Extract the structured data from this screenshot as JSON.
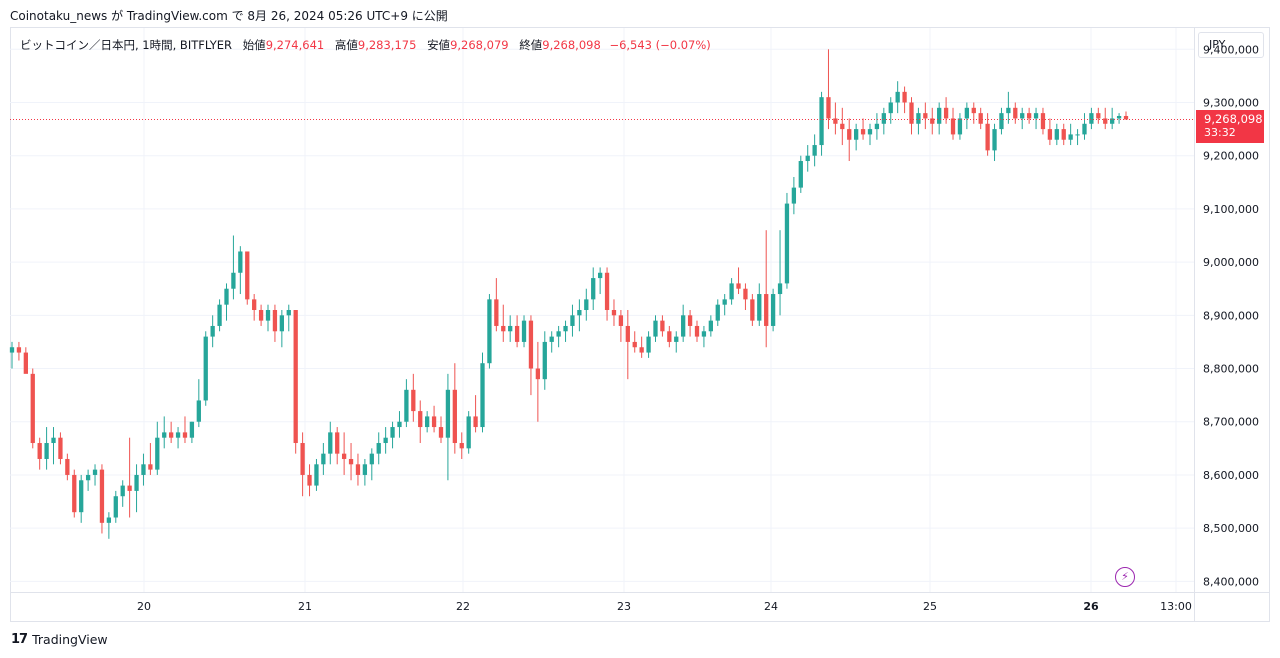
{
  "header": {
    "title": "Coinotaku_news が TradingView.com で 8月 26, 2024 05:26 UTC+9 に公開"
  },
  "legend": {
    "symbol": "ビットコイン／日本円, 1時間, BITFLYER",
    "open_label": "始値",
    "open": "9,274,641",
    "high_label": "高値",
    "high": "9,283,175",
    "low_label": "安値",
    "low": "9,268,079",
    "close_label": "終値",
    "close": "9,268,098",
    "change": "−6,543 (−0.07%)"
  },
  "currency": "JPY",
  "price_tag": {
    "price": "9,268,098",
    "countdown": "33:32"
  },
  "footer": {
    "logo_text": "TradingView",
    "logo_mark": "17"
  },
  "colors": {
    "up": "#26a69a",
    "down": "#ef5350",
    "grid": "#f0f3fa",
    "last_price": "#f23645"
  },
  "chart_data": {
    "type": "candlestick",
    "ylim": [
      8380000,
      9440000
    ],
    "y_ticks": [
      8400000,
      8500000,
      8600000,
      8700000,
      8800000,
      8900000,
      9000000,
      9100000,
      9200000,
      9300000,
      9400000
    ],
    "y_tick_labels": [
      "8,400,000",
      "8,500,000",
      "8,600,000",
      "8,700,000",
      "8,800,000",
      "8,900,000",
      "9,000,000",
      "9,100,000",
      "9,200,000",
      "9,300,000",
      "9,400,000"
    ],
    "x_ticks": [
      {
        "label": "20",
        "bold": false
      },
      {
        "label": "21",
        "bold": false
      },
      {
        "label": "22",
        "bold": false
      },
      {
        "label": "23",
        "bold": false
      },
      {
        "label": "24",
        "bold": false
      },
      {
        "label": "25",
        "bold": false
      },
      {
        "label": "26",
        "bold": true
      },
      {
        "label": "13:00",
        "bold": false
      }
    ],
    "last_price": 9268098,
    "candles_ohlc": [
      [
        8830000,
        8850000,
        8800000,
        8840000
      ],
      [
        8840000,
        8850000,
        8815000,
        8830000
      ],
      [
        8830000,
        8840000,
        8800000,
        8790000
      ],
      [
        8790000,
        8800000,
        8650000,
        8660000
      ],
      [
        8660000,
        8670000,
        8610000,
        8630000
      ],
      [
        8630000,
        8690000,
        8610000,
        8660000
      ],
      [
        8660000,
        8690000,
        8620000,
        8670000
      ],
      [
        8670000,
        8680000,
        8620000,
        8630000
      ],
      [
        8630000,
        8640000,
        8590000,
        8600000
      ],
      [
        8600000,
        8610000,
        8520000,
        8530000
      ],
      [
        8530000,
        8600000,
        8510000,
        8590000
      ],
      [
        8590000,
        8610000,
        8570000,
        8600000
      ],
      [
        8600000,
        8620000,
        8580000,
        8610000
      ],
      [
        8610000,
        8620000,
        8490000,
        8510000
      ],
      [
        8510000,
        8530000,
        8480000,
        8520000
      ],
      [
        8520000,
        8570000,
        8510000,
        8560000
      ],
      [
        8560000,
        8590000,
        8540000,
        8580000
      ],
      [
        8580000,
        8670000,
        8520000,
        8570000
      ],
      [
        8570000,
        8620000,
        8530000,
        8600000
      ],
      [
        8600000,
        8640000,
        8580000,
        8620000
      ],
      [
        8620000,
        8660000,
        8600000,
        8610000
      ],
      [
        8610000,
        8700000,
        8600000,
        8670000
      ],
      [
        8670000,
        8710000,
        8650000,
        8680000
      ],
      [
        8680000,
        8700000,
        8660000,
        8670000
      ],
      [
        8670000,
        8690000,
        8650000,
        8680000
      ],
      [
        8680000,
        8710000,
        8660000,
        8670000
      ],
      [
        8670000,
        8700000,
        8660000,
        8700000
      ],
      [
        8700000,
        8780000,
        8690000,
        8740000
      ],
      [
        8740000,
        8870000,
        8730000,
        8860000
      ],
      [
        8860000,
        8900000,
        8840000,
        8880000
      ],
      [
        8880000,
        8930000,
        8870000,
        8920000
      ],
      [
        8920000,
        8960000,
        8890000,
        8950000
      ],
      [
        8950000,
        9050000,
        8930000,
        8980000
      ],
      [
        8980000,
        9030000,
        8940000,
        9020000
      ],
      [
        9020000,
        9010000,
        8920000,
        8930000
      ],
      [
        8930000,
        8940000,
        8890000,
        8910000
      ],
      [
        8910000,
        8920000,
        8880000,
        8890000
      ],
      [
        8890000,
        8920000,
        8870000,
        8910000
      ],
      [
        8910000,
        8920000,
        8850000,
        8870000
      ],
      [
        8870000,
        8910000,
        8840000,
        8900000
      ],
      [
        8900000,
        8920000,
        8870000,
        8910000
      ],
      [
        8910000,
        8910000,
        8640000,
        8660000
      ],
      [
        8660000,
        8680000,
        8560000,
        8600000
      ],
      [
        8600000,
        8620000,
        8560000,
        8580000
      ],
      [
        8580000,
        8630000,
        8570000,
        8620000
      ],
      [
        8620000,
        8660000,
        8600000,
        8640000
      ],
      [
        8640000,
        8700000,
        8620000,
        8680000
      ],
      [
        8680000,
        8690000,
        8620000,
        8640000
      ],
      [
        8640000,
        8680000,
        8600000,
        8630000
      ],
      [
        8630000,
        8660000,
        8590000,
        8620000
      ],
      [
        8620000,
        8640000,
        8580000,
        8600000
      ],
      [
        8600000,
        8630000,
        8580000,
        8620000
      ],
      [
        8620000,
        8650000,
        8590000,
        8640000
      ],
      [
        8640000,
        8680000,
        8620000,
        8660000
      ],
      [
        8660000,
        8690000,
        8640000,
        8670000
      ],
      [
        8670000,
        8700000,
        8650000,
        8690000
      ],
      [
        8690000,
        8720000,
        8670000,
        8700000
      ],
      [
        8700000,
        8780000,
        8690000,
        8760000
      ],
      [
        8760000,
        8790000,
        8700000,
        8720000
      ],
      [
        8720000,
        8740000,
        8660000,
        8690000
      ],
      [
        8690000,
        8720000,
        8680000,
        8710000
      ],
      [
        8710000,
        8730000,
        8680000,
        8690000
      ],
      [
        8690000,
        8710000,
        8660000,
        8670000
      ],
      [
        8670000,
        8790000,
        8590000,
        8760000
      ],
      [
        8760000,
        8810000,
        8640000,
        8660000
      ],
      [
        8660000,
        8680000,
        8630000,
        8650000
      ],
      [
        8650000,
        8720000,
        8640000,
        8710000
      ],
      [
        8710000,
        8750000,
        8680000,
        8690000
      ],
      [
        8690000,
        8830000,
        8680000,
        8810000
      ],
      [
        8810000,
        8940000,
        8800000,
        8930000
      ],
      [
        8930000,
        8970000,
        8870000,
        8880000
      ],
      [
        8880000,
        8920000,
        8850000,
        8870000
      ],
      [
        8870000,
        8900000,
        8850000,
        8880000
      ],
      [
        8880000,
        8900000,
        8840000,
        8850000
      ],
      [
        8850000,
        8900000,
        8840000,
        8890000
      ],
      [
        8890000,
        8900000,
        8750000,
        8800000
      ],
      [
        8800000,
        8850000,
        8700000,
        8780000
      ],
      [
        8780000,
        8870000,
        8760000,
        8850000
      ],
      [
        8850000,
        8870000,
        8830000,
        8860000
      ],
      [
        8860000,
        8880000,
        8840000,
        8870000
      ],
      [
        8870000,
        8890000,
        8850000,
        8880000
      ],
      [
        8880000,
        8920000,
        8860000,
        8900000
      ],
      [
        8900000,
        8930000,
        8870000,
        8910000
      ],
      [
        8910000,
        8950000,
        8890000,
        8930000
      ],
      [
        8930000,
        8990000,
        8910000,
        8970000
      ],
      [
        8970000,
        8990000,
        8940000,
        8980000
      ],
      [
        8980000,
        8990000,
        8890000,
        8910000
      ],
      [
        8910000,
        8930000,
        8880000,
        8900000
      ],
      [
        8900000,
        8910000,
        8850000,
        8880000
      ],
      [
        8880000,
        8910000,
        8780000,
        8850000
      ],
      [
        8850000,
        8870000,
        8830000,
        8840000
      ],
      [
        8840000,
        8860000,
        8820000,
        8830000
      ],
      [
        8830000,
        8870000,
        8820000,
        8860000
      ],
      [
        8860000,
        8900000,
        8850000,
        8890000
      ],
      [
        8890000,
        8900000,
        8860000,
        8870000
      ],
      [
        8870000,
        8880000,
        8840000,
        8850000
      ],
      [
        8850000,
        8870000,
        8830000,
        8860000
      ],
      [
        8860000,
        8920000,
        8850000,
        8900000
      ],
      [
        8900000,
        8910000,
        8860000,
        8880000
      ],
      [
        8880000,
        8890000,
        8850000,
        8860000
      ],
      [
        8860000,
        8880000,
        8840000,
        8870000
      ],
      [
        8870000,
        8900000,
        8860000,
        8890000
      ],
      [
        8890000,
        8930000,
        8880000,
        8920000
      ],
      [
        8920000,
        8940000,
        8900000,
        8930000
      ],
      [
        8930000,
        8970000,
        8920000,
        8960000
      ],
      [
        8960000,
        8990000,
        8940000,
        8950000
      ],
      [
        8950000,
        8960000,
        8910000,
        8930000
      ],
      [
        8930000,
        8940000,
        8880000,
        8890000
      ],
      [
        8890000,
        8960000,
        8880000,
        8940000
      ],
      [
        8940000,
        9060000,
        8840000,
        8880000
      ],
      [
        8880000,
        8950000,
        8870000,
        8940000
      ],
      [
        8940000,
        9060000,
        8900000,
        8960000
      ],
      [
        8960000,
        9130000,
        8950000,
        9110000
      ],
      [
        9110000,
        9160000,
        9090000,
        9140000
      ],
      [
        9140000,
        9200000,
        9130000,
        9190000
      ],
      [
        9190000,
        9220000,
        9170000,
        9200000
      ],
      [
        9200000,
        9240000,
        9180000,
        9220000
      ],
      [
        9220000,
        9320000,
        9200000,
        9310000
      ],
      [
        9310000,
        9400000,
        9250000,
        9270000
      ],
      [
        9270000,
        9300000,
        9240000,
        9260000
      ],
      [
        9260000,
        9290000,
        9220000,
        9250000
      ],
      [
        9250000,
        9270000,
        9190000,
        9230000
      ],
      [
        9230000,
        9260000,
        9210000,
        9250000
      ],
      [
        9250000,
        9270000,
        9230000,
        9240000
      ],
      [
        9240000,
        9260000,
        9220000,
        9250000
      ],
      [
        9250000,
        9280000,
        9230000,
        9260000
      ],
      [
        9260000,
        9290000,
        9240000,
        9280000
      ],
      [
        9280000,
        9310000,
        9260000,
        9300000
      ],
      [
        9300000,
        9340000,
        9280000,
        9320000
      ],
      [
        9320000,
        9330000,
        9280000,
        9300000
      ],
      [
        9300000,
        9310000,
        9240000,
        9260000
      ],
      [
        9260000,
        9290000,
        9240000,
        9280000
      ],
      [
        9280000,
        9300000,
        9250000,
        9270000
      ],
      [
        9270000,
        9290000,
        9240000,
        9260000
      ],
      [
        9260000,
        9300000,
        9240000,
        9290000
      ],
      [
        9290000,
        9310000,
        9260000,
        9270000
      ],
      [
        9270000,
        9290000,
        9230000,
        9240000
      ],
      [
        9240000,
        9280000,
        9230000,
        9270000
      ],
      [
        9270000,
        9300000,
        9250000,
        9290000
      ],
      [
        9290000,
        9300000,
        9260000,
        9280000
      ],
      [
        9280000,
        9290000,
        9250000,
        9260000
      ],
      [
        9260000,
        9280000,
        9200000,
        9210000
      ],
      [
        9210000,
        9260000,
        9190000,
        9250000
      ],
      [
        9250000,
        9290000,
        9240000,
        9280000
      ],
      [
        9280000,
        9320000,
        9260000,
        9290000
      ],
      [
        9290000,
        9300000,
        9260000,
        9270000
      ],
      [
        9270000,
        9290000,
        9250000,
        9280000
      ],
      [
        9280000,
        9290000,
        9260000,
        9270000
      ],
      [
        9270000,
        9290000,
        9250000,
        9280000
      ],
      [
        9280000,
        9290000,
        9240000,
        9250000
      ],
      [
        9250000,
        9270000,
        9220000,
        9230000
      ],
      [
        9230000,
        9260000,
        9220000,
        9250000
      ],
      [
        9250000,
        9260000,
        9220000,
        9230000
      ],
      [
        9230000,
        9260000,
        9220000,
        9240000
      ],
      [
        9240000,
        9250000,
        9220000,
        9240000
      ],
      [
        9240000,
        9280000,
        9230000,
        9260000
      ],
      [
        9260000,
        9290000,
        9250000,
        9280000
      ],
      [
        9280000,
        9290000,
        9260000,
        9270000
      ],
      [
        9270000,
        9290000,
        9250000,
        9260000
      ],
      [
        9260000,
        9290000,
        9250000,
        9270000
      ],
      [
        9270000,
        9280000,
        9260000,
        9274641
      ],
      [
        9274641,
        9283175,
        9268079,
        9268098
      ]
    ]
  }
}
